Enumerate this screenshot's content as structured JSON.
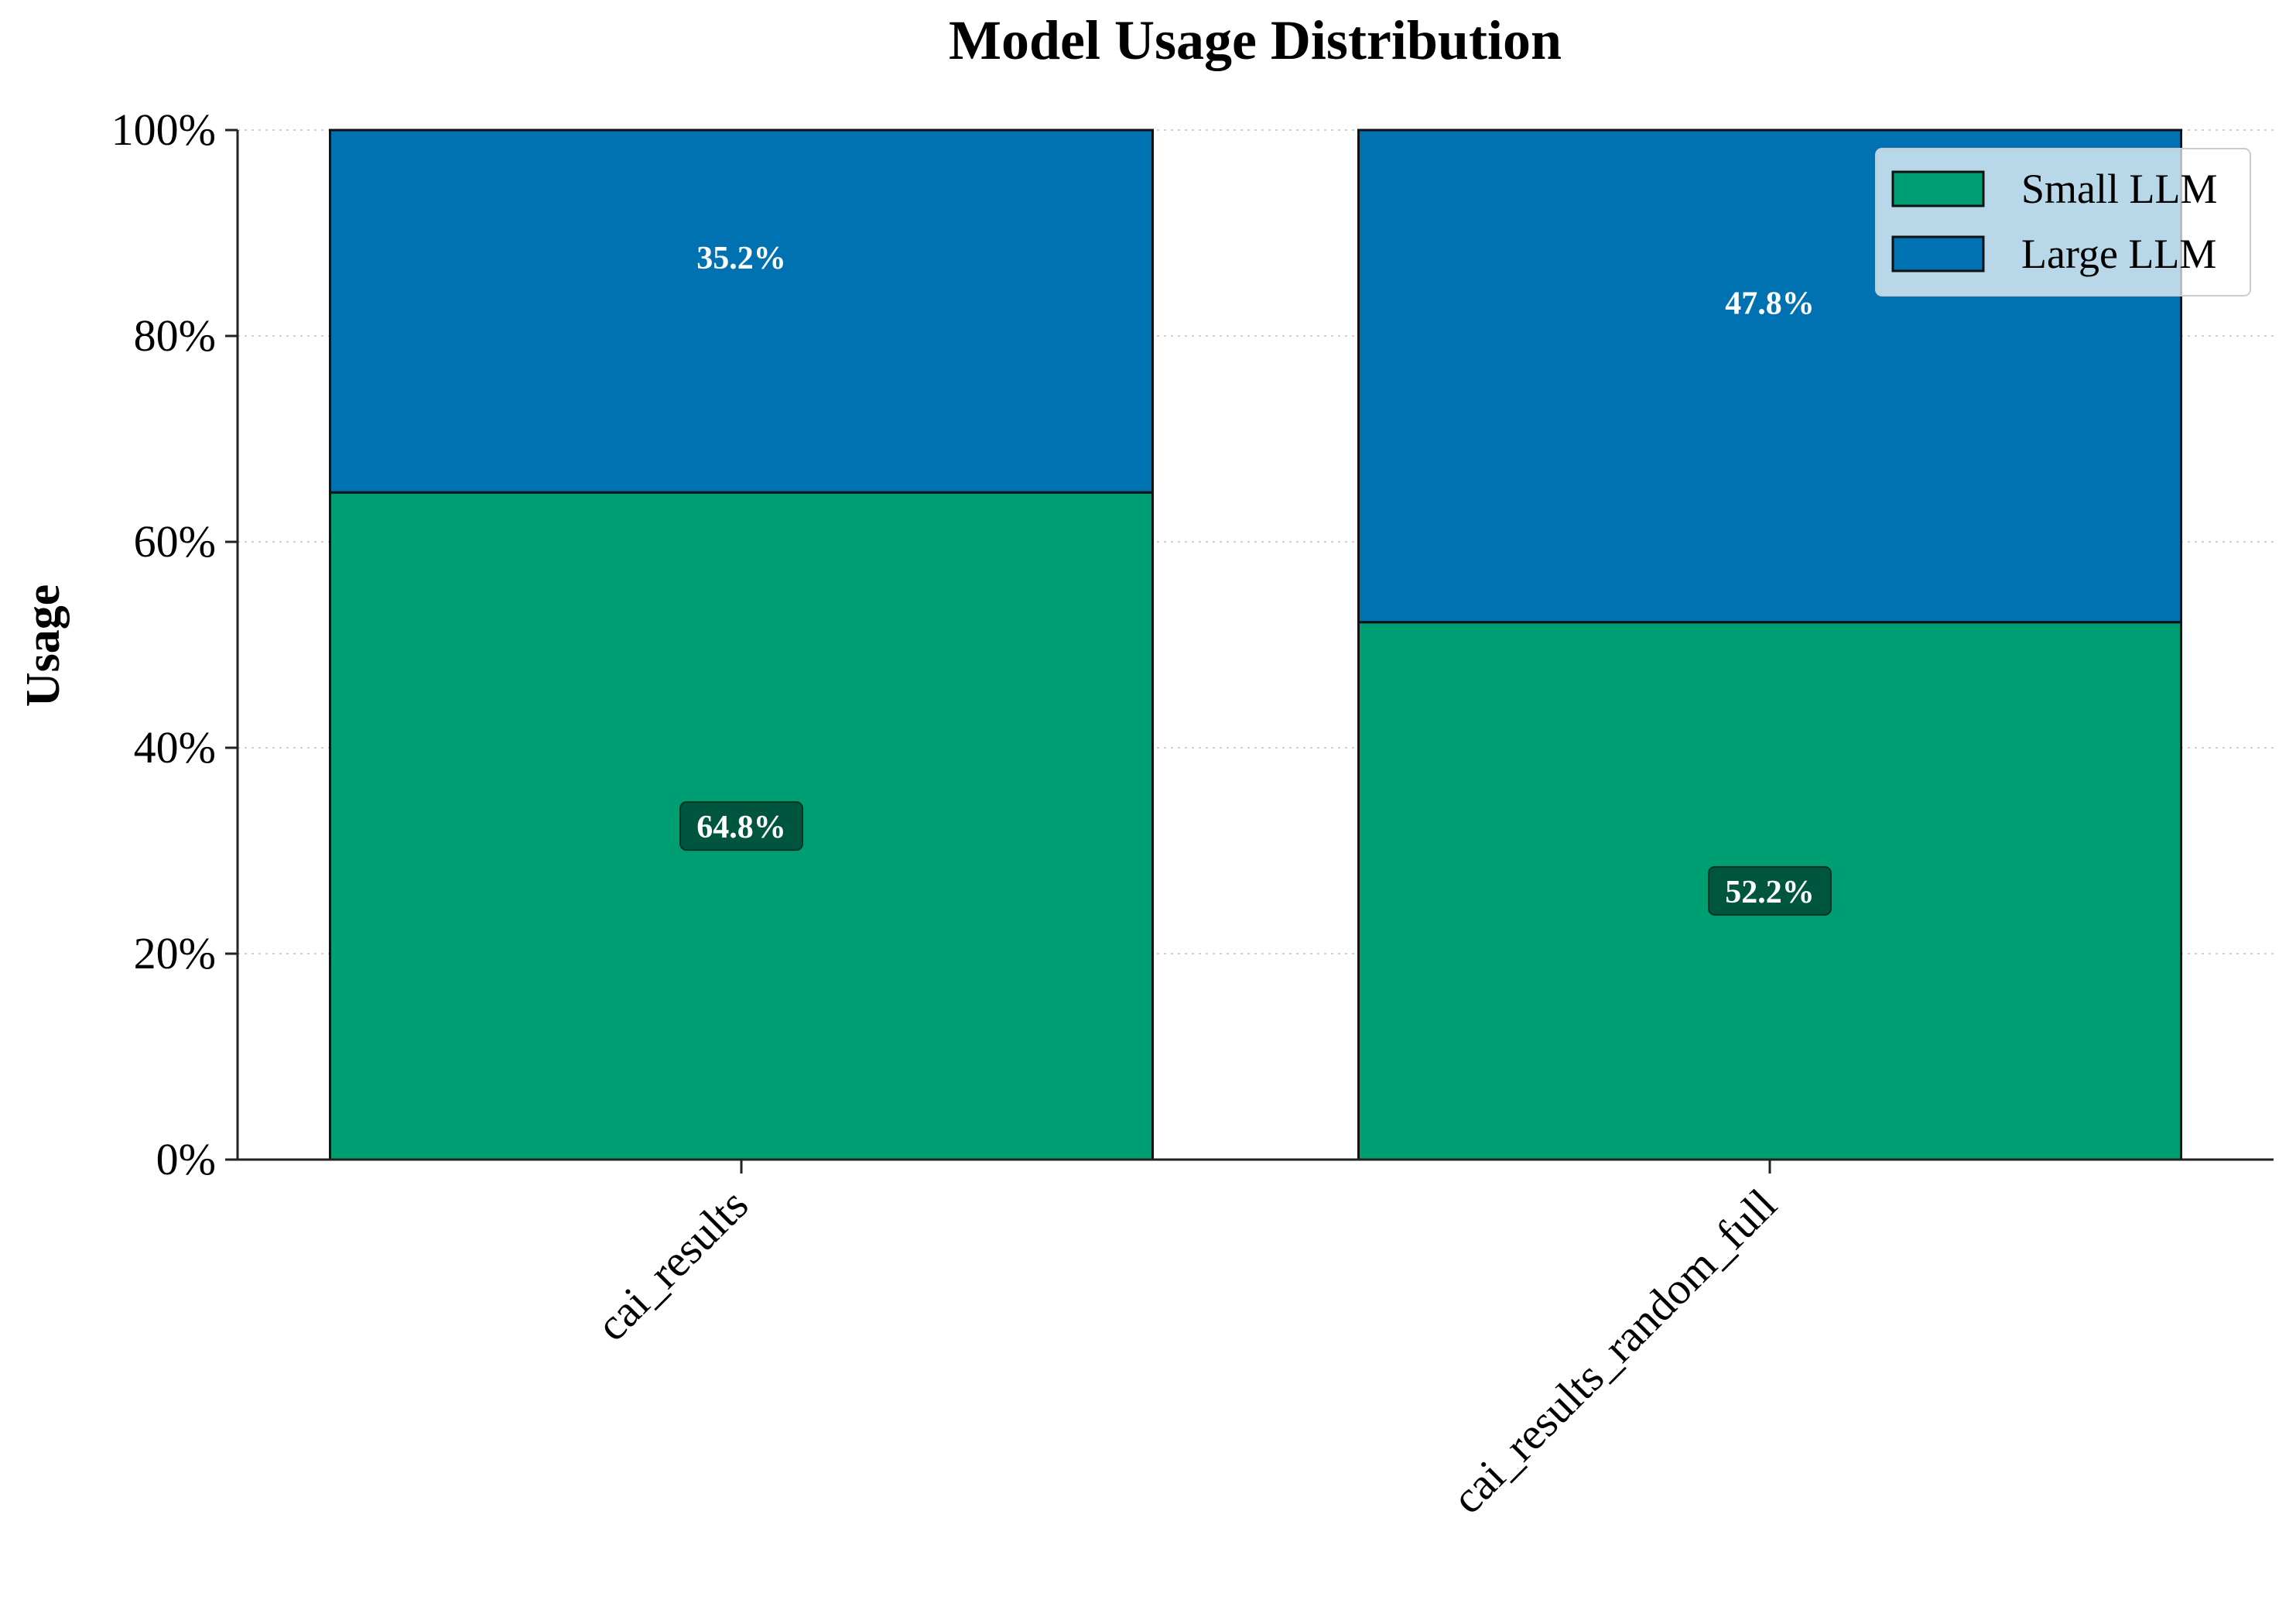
{
  "chart_data": {
    "type": "bar",
    "stacked": true,
    "title": "Model Usage Distribution",
    "xlabel": "",
    "ylabel": "Usage",
    "ylim": [
      0,
      100
    ],
    "y_ticks": [
      {
        "value": 0,
        "label": "0%"
      },
      {
        "value": 20,
        "label": "20%"
      },
      {
        "value": 40,
        "label": "40%"
      },
      {
        "value": 60,
        "label": "60%"
      },
      {
        "value": 80,
        "label": "80%"
      },
      {
        "value": 100,
        "label": "100%"
      }
    ],
    "categories": [
      "cai_results",
      "cai_results_random_full"
    ],
    "series": [
      {
        "name": "Small LLM",
        "values": [
          64.8,
          52.2
        ],
        "labels": [
          "64.8%",
          "52.2%"
        ],
        "color": "#009E73",
        "label_box_color": "#004D38"
      },
      {
        "name": "Large LLM",
        "values": [
          35.2,
          47.8
        ],
        "labels": [
          "35.2%",
          "47.8%"
        ],
        "color": "#0072B2"
      }
    ],
    "grid": "horizontal-dotted",
    "legend_position": "top-right",
    "legend": [
      {
        "label": "Small LLM",
        "color": "#009E73"
      },
      {
        "label": "Large LLM",
        "color": "#0072B2"
      }
    ]
  }
}
